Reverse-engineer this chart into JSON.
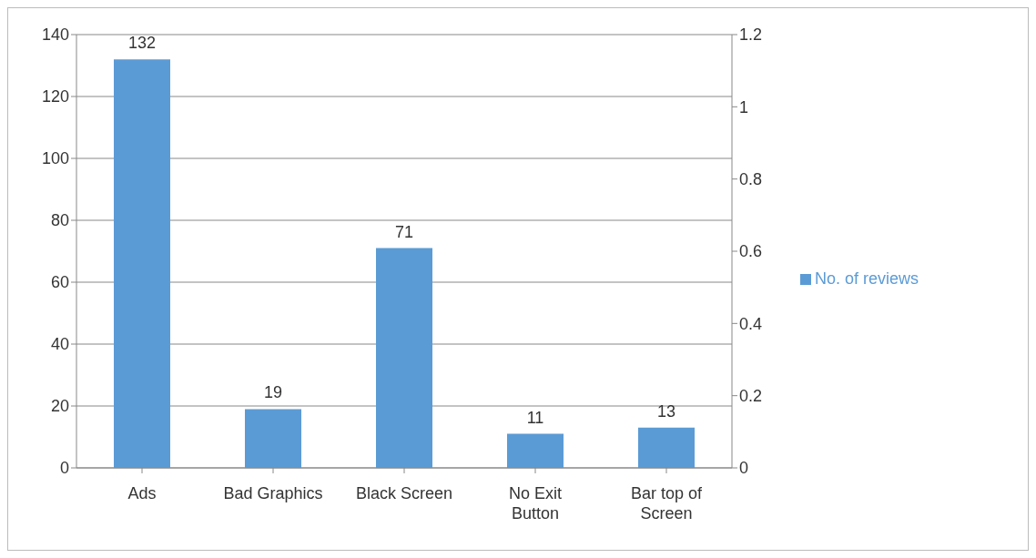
{
  "chart_data": {
    "type": "bar",
    "categories": [
      "Ads",
      "Bad Graphics",
      "Black Screen",
      "No Exit Button",
      "Bar top of Screen"
    ],
    "series": [
      {
        "name": "No. of reviews",
        "color": "#5b9bd5",
        "values": [
          132,
          19,
          71,
          11,
          13
        ]
      }
    ],
    "ylim": [
      0,
      140
    ],
    "yticks": [
      0,
      20,
      40,
      60,
      80,
      100,
      120,
      140
    ],
    "y2lim": [
      0,
      1.2
    ],
    "y2ticks": [
      0,
      0.2,
      0.4,
      0.6,
      0.8,
      1,
      1.2
    ],
    "grid": "y",
    "legend": "right",
    "data_labels": true
  }
}
